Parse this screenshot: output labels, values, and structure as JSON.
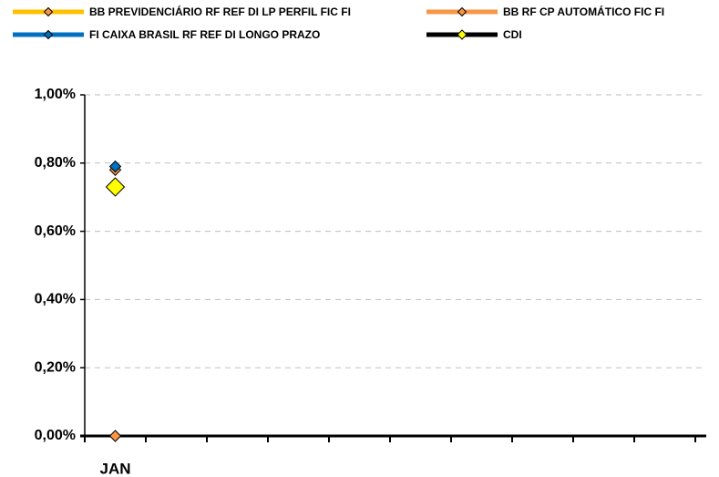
{
  "chart_data": {
    "type": "line",
    "categories": [
      "JAN",
      null,
      null,
      null,
      null,
      null,
      null,
      null,
      null,
      null
    ],
    "series": [
      {
        "name": "BB PREVIDENCIÁRIO RF REF DI LP PERFIL FIC FI",
        "color": "#ffc000",
        "marker_color": "#f79646",
        "values": [
          0.78,
          null,
          null,
          null,
          null,
          null,
          null,
          null,
          null,
          null
        ]
      },
      {
        "name": "BB RF CP AUTOMÁTICO FIC FI",
        "color": "#f79646",
        "marker_color": "#f79646",
        "values": [
          0.0,
          null,
          null,
          null,
          null,
          null,
          null,
          null,
          null,
          null
        ]
      },
      {
        "name": "FI CAIXA BRASIL RF REF DI LONGO PRAZO",
        "color": "#0070c0",
        "marker_color": "#0070c0",
        "values": [
          0.79,
          null,
          null,
          null,
          null,
          null,
          null,
          null,
          null,
          null
        ]
      },
      {
        "name": "CDI",
        "color": "#000000",
        "marker_color": "#ffff00",
        "values": [
          0.73,
          null,
          null,
          null,
          null,
          null,
          null,
          null,
          null,
          null
        ]
      }
    ],
    "ylim": [
      0,
      1
    ],
    "yticks": [
      {
        "value": 0,
        "label": "0,00%"
      },
      {
        "value": 0.2,
        "label": "0,20%"
      },
      {
        "value": 0.4,
        "label": "0,40%"
      },
      {
        "value": 0.6,
        "label": "0,60%"
      },
      {
        "value": 0.8,
        "label": "0,80%"
      },
      {
        "value": 1,
        "label": "1,00%"
      }
    ],
    "grid": true
  }
}
